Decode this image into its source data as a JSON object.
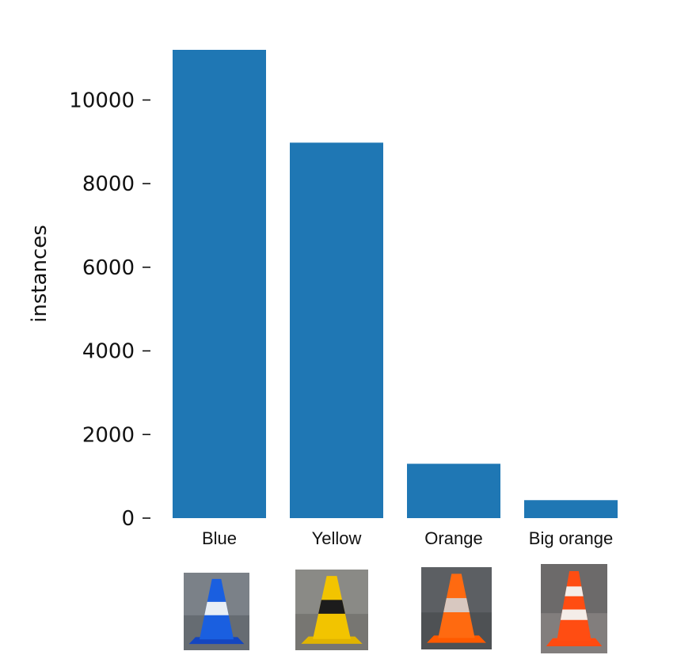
{
  "chart_data": {
    "type": "bar",
    "title": "",
    "xlabel": "",
    "ylabel": "instances",
    "categories": [
      "Blue",
      "Yellow",
      "Orange",
      "Big orange"
    ],
    "values": [
      11200,
      8980,
      1300,
      430
    ],
    "ylim": [
      0,
      11200
    ],
    "yticks": [
      0,
      2000,
      4000,
      6000,
      8000,
      10000
    ],
    "grid": false,
    "legend": "none",
    "bar_color": "#1f77b4"
  },
  "cone_images": [
    {
      "name": "blue-cone",
      "body": "#1a5fe0",
      "stripe": "#e8eef5",
      "base": "#1446c0",
      "ground": "#7b8188",
      "ground2": "#5e6469"
    },
    {
      "name": "yellow-cone",
      "body": "#f2c400",
      "stripe": "#1c1c1c",
      "base": "#e0b400",
      "ground": "#8a8a86",
      "ground2": "#6f6e69"
    },
    {
      "name": "orange-cone",
      "body": "#ff6a10",
      "stripe": "#d8c8c0",
      "base": "#ff5a00",
      "ground": "#5c5f63",
      "ground2": "#484b4f"
    },
    {
      "name": "big-orange-cone",
      "body": "#ff4d12",
      "stripe": "#f4ede8",
      "base": "#ff4a10",
      "ground": "#6c6a6a",
      "ground2": "#8c8886"
    }
  ]
}
